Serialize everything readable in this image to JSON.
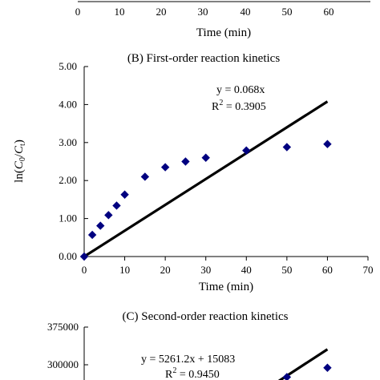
{
  "chart_data": [
    {
      "panel": "A",
      "type": "scatter",
      "title": "",
      "xlabel": "Time (min)",
      "x_ticks": [
        "0",
        "10",
        "20",
        "30",
        "40",
        "50",
        "60"
      ],
      "xlim": [
        0,
        70
      ],
      "visible": "partial (bottom of panel only)"
    },
    {
      "panel": "B",
      "type": "scatter",
      "title": "(B) First-order reaction kinetics",
      "xlabel": "Time (min)",
      "ylabel": "ln(C0/Ct)",
      "xlim": [
        0,
        70
      ],
      "ylim": [
        0,
        5
      ],
      "x_ticks": [
        "0",
        "10",
        "20",
        "30",
        "40",
        "50",
        "60",
        "70"
      ],
      "y_ticks": [
        "0.00",
        "1.00",
        "2.00",
        "3.00",
        "4.00",
        "5.00"
      ],
      "grid": false,
      "series": [
        {
          "kind": "points",
          "marker": "diamond",
          "color": "#000080",
          "x": [
            0,
            2,
            4,
            6,
            8,
            10,
            15,
            20,
            25,
            30,
            40,
            50,
            60
          ],
          "y": [
            0.0,
            0.57,
            0.81,
            1.09,
            1.34,
            1.63,
            2.1,
            2.35,
            2.5,
            2.6,
            2.79,
            2.88,
            2.96
          ]
        },
        {
          "kind": "fit",
          "color": "#000000",
          "x": [
            0,
            60
          ],
          "y": [
            0,
            4.08
          ]
        }
      ],
      "annotations": [
        "y = 0.068x",
        "R",
        "2",
        " = 0.3905"
      ]
    },
    {
      "panel": "C",
      "type": "scatter",
      "title": "(C) Second-order reaction kinetics",
      "y_ticks": [
        "300000",
        "375000"
      ],
      "ylim_visible": [
        275000,
        375000
      ],
      "xlim": [
        0,
        70
      ],
      "series": [
        {
          "kind": "points",
          "marker": "diamond",
          "color": "#000080",
          "x": [
            50,
            60
          ],
          "y": [
            275500,
            294000
          ]
        },
        {
          "kind": "fit",
          "color": "#000000",
          "x": [
            45,
            60
          ],
          "y": [
            251857,
            330749
          ]
        }
      ],
      "annotations": [
        "y = 5261.2x + 15083",
        "R",
        "2",
        " = 0.9450"
      ]
    }
  ]
}
